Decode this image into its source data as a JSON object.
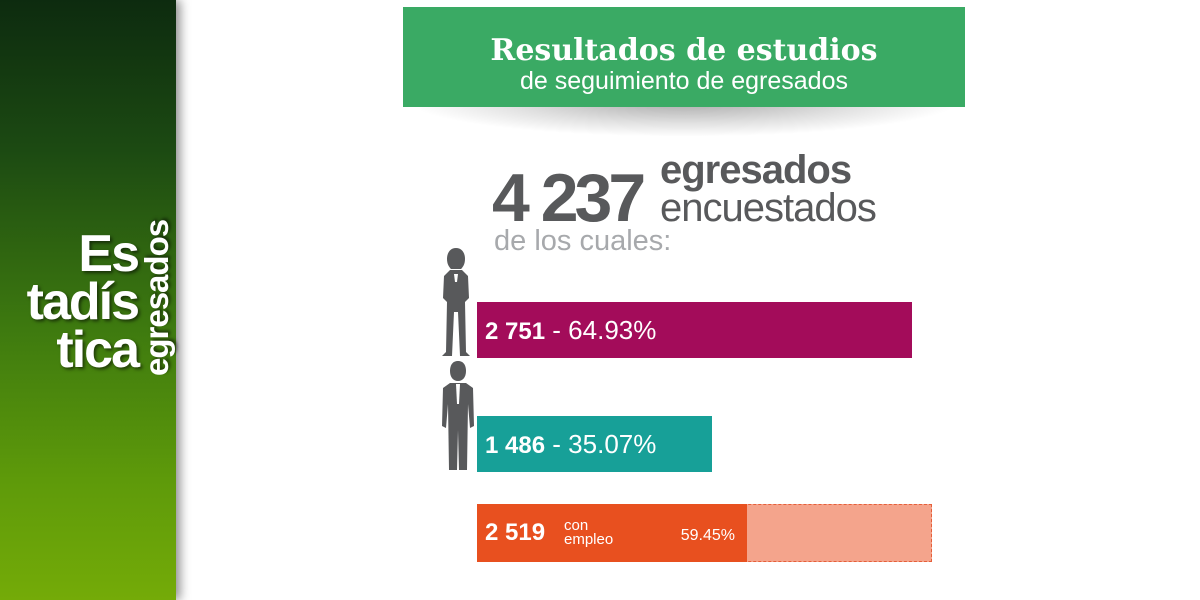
{
  "sidebar": {
    "brand_line1": "Es",
    "brand_line2": "tadís",
    "brand_line3": "tica",
    "brand_vertical": "egresados",
    "colors": {
      "dark": "#0d2b0f",
      "light": "#74ab08"
    }
  },
  "header": {
    "title": "Resultados de estudios",
    "subtitle": "de seguimiento de egresados",
    "color": "#3aaa64"
  },
  "summary": {
    "total": "4 237",
    "label_line1": "egresados",
    "label_line2": "encuestados",
    "of_which": "de los cuales:"
  },
  "chart_data": {
    "type": "bar",
    "orientation": "horizontal",
    "total": 4237,
    "series": [
      {
        "icon": "woman-silhouette-icon",
        "value_label": "2 751",
        "separator": " - ",
        "percent_label": "64.93%",
        "value": 2751,
        "percent": 64.93,
        "color": "#a30c5a"
      },
      {
        "icon": "man-silhouette-icon",
        "value_label": "1 486",
        "separator": " - ",
        "percent_label": "35.07%",
        "value": 1486,
        "percent": 35.07,
        "color": "#17a098"
      }
    ],
    "employment": {
      "value_label": "2 519",
      "label_line1": "con",
      "label_line2": "empleo",
      "percent_label": "59.45%",
      "value": 2519,
      "percent": 59.45,
      "color": "#e8501f",
      "remainder_color": "#f4a48c"
    }
  }
}
